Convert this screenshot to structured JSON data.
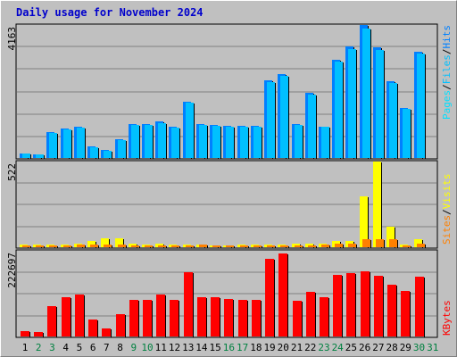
{
  "title": "Daily usage for November 2024",
  "colors": {
    "hits": "#0080ff",
    "files": "#00c0ff",
    "pages": "#00e0ff",
    "visits": "#ffff00",
    "sites": "#ff8000",
    "kbytes": "#ff0000",
    "weekend": "#008040",
    "weekday": "#000000"
  },
  "legend": {
    "top": [
      "Pages",
      "Files",
      "Hits"
    ],
    "middle": [
      "Sites",
      "Visits"
    ],
    "bottom": [
      "KBytes"
    ],
    "sep": "/"
  },
  "chart_data": {
    "type": "bar",
    "categories": [
      "1",
      "2",
      "3",
      "4",
      "5",
      "6",
      "7",
      "8",
      "9",
      "10",
      "11",
      "12",
      "13",
      "14",
      "15",
      "16",
      "17",
      "18",
      "19",
      "20",
      "21",
      "22",
      "23",
      "24",
      "25",
      "26",
      "27",
      "28",
      "29",
      "30",
      "31"
    ],
    "weekend_days": [
      "2",
      "3",
      "9",
      "10",
      "16",
      "17",
      "23",
      "24",
      "30",
      "31"
    ],
    "panels": [
      {
        "name": "top",
        "ymax_label": "4163",
        "ymax": 4163,
        "series": [
          {
            "name": "Hits",
            "values": [
              150,
              100,
              810,
              910,
              970,
              360,
              250,
              600,
              1070,
              1060,
              1140,
              990,
              1770,
              1060,
              1030,
              1010,
              1010,
              1000,
              2430,
              2620,
              1060,
              2050,
              990,
              3080,
              3500,
              4163,
              3470,
              2400,
              1570,
              3330,
              0
            ]
          },
          {
            "name": "Files",
            "values": [
              140,
              100,
              780,
              890,
              950,
              340,
              210,
              570,
              1040,
              1040,
              1100,
              960,
              1720,
              1030,
              1000,
              990,
              980,
              980,
              2380,
              2570,
              1030,
              1990,
              970,
              3020,
              3420,
              4050,
              3390,
              2350,
              1540,
              3260,
              0
            ]
          },
          {
            "name": "Pages",
            "values": [
              0,
              0,
              0,
              0,
              0,
              0,
              0,
              0,
              0,
              0,
              0,
              0,
              0,
              0,
              0,
              0,
              0,
              0,
              0,
              0,
              0,
              0,
              0,
              0,
              0,
              0,
              0,
              0,
              0,
              0,
              0
            ]
          }
        ]
      },
      {
        "name": "middle",
        "ymax_label": "522",
        "ymax": 522,
        "series": [
          {
            "name": "Visits",
            "values": [
              16,
              16,
              16,
              16,
              22,
              37,
              56,
              56,
              22,
              16,
              22,
              16,
              16,
              16,
              10,
              10,
              16,
              16,
              16,
              16,
              22,
              22,
              22,
              37,
              37,
              311,
              522,
              125,
              16,
              47,
              0
            ]
          },
          {
            "name": "Sites",
            "values": [
              10,
              10,
              10,
              10,
              16,
              16,
              16,
              16,
              10,
              10,
              10,
              10,
              10,
              16,
              10,
              10,
              10,
              10,
              10,
              10,
              10,
              10,
              16,
              22,
              22,
              47,
              47,
              47,
              10,
              22,
              0
            ]
          }
        ]
      },
      {
        "name": "bottom",
        "ymax_label": "222697",
        "ymax": 222697,
        "series": [
          {
            "name": "KBytes",
            "values": [
              13000,
              11000,
              80000,
              103000,
              108000,
              43000,
              20000,
              58000,
              94000,
              95000,
              108000,
              95000,
              166000,
              101000,
              101000,
              97000,
              95000,
              96000,
              201000,
              216000,
              92000,
              117000,
              101000,
              159000,
              164000,
              169000,
              158000,
              134000,
              118000,
              155000,
              0
            ]
          }
        ]
      }
    ]
  }
}
